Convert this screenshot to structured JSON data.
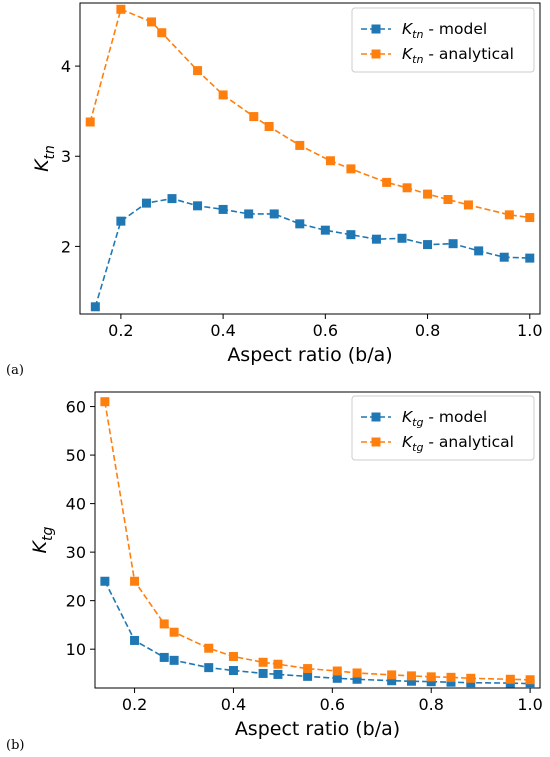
{
  "panel_labels": [
    "(a)",
    "(b)"
  ],
  "colors": {
    "model": "#1f77b4",
    "analytical": "#ff7f0e"
  },
  "chart_data": [
    {
      "type": "line",
      "xlabel": "Aspect ratio (b/a)",
      "ylabel_main": "K",
      "ylabel_sub": "tn",
      "xlim": [
        0.12,
        1.02
      ],
      "ylim": [
        1.25,
        4.7
      ],
      "xticks": [
        0.2,
        0.4,
        0.6,
        0.8,
        1.0
      ],
      "xtick_labels": [
        "0.2",
        "0.4",
        "0.6",
        "0.8",
        "1.0"
      ],
      "yticks": [
        2,
        3,
        4
      ],
      "ytick_labels": [
        "2",
        "3",
        "4"
      ],
      "legend_position": "top-right",
      "series": [
        {
          "name": "model",
          "legend_main": "K",
          "legend_sub": "tn",
          "legend_text": " - model",
          "color": "#1f77b4",
          "x": [
            0.15,
            0.2,
            0.25,
            0.3,
            0.35,
            0.4,
            0.45,
            0.5,
            0.55,
            0.6,
            0.65,
            0.7,
            0.75,
            0.8,
            0.85,
            0.9,
            0.95,
            1.0
          ],
          "y": [
            1.33,
            2.28,
            2.48,
            2.53,
            2.45,
            2.41,
            2.36,
            2.36,
            2.25,
            2.18,
            2.13,
            2.08,
            2.09,
            2.02,
            2.03,
            1.95,
            1.88,
            1.87
          ]
        },
        {
          "name": "analytical",
          "legend_main": "K",
          "legend_sub": "tn",
          "legend_text": " - analytical",
          "color": "#ff7f0e",
          "x": [
            0.14,
            0.2,
            0.26,
            0.28,
            0.35,
            0.4,
            0.46,
            0.49,
            0.55,
            0.61,
            0.65,
            0.72,
            0.76,
            0.8,
            0.84,
            0.88,
            0.96,
            1.0
          ],
          "y": [
            3.38,
            4.63,
            4.49,
            4.37,
            3.95,
            3.68,
            3.44,
            3.33,
            3.12,
            2.95,
            2.86,
            2.71,
            2.65,
            2.58,
            2.52,
            2.46,
            2.35,
            2.32
          ]
        }
      ]
    },
    {
      "type": "line",
      "xlabel": "Aspect ratio (b/a)",
      "ylabel_main": "K",
      "ylabel_sub": "tg",
      "xlim": [
        0.12,
        1.02
      ],
      "ylim": [
        2,
        63
      ],
      "xticks": [
        0.2,
        0.4,
        0.6,
        0.8,
        1.0
      ],
      "xtick_labels": [
        "0.2",
        "0.4",
        "0.6",
        "0.8",
        "1.0"
      ],
      "yticks": [
        10,
        20,
        30,
        40,
        50,
        60
      ],
      "ytick_labels": [
        "10",
        "20",
        "30",
        "40",
        "50",
        "60"
      ],
      "legend_position": "top-right",
      "series": [
        {
          "name": "model",
          "legend_main": "K",
          "legend_sub": "tg",
          "legend_text": " - model",
          "color": "#1f77b4",
          "x": [
            0.14,
            0.2,
            0.26,
            0.28,
            0.35,
            0.4,
            0.46,
            0.49,
            0.55,
            0.61,
            0.65,
            0.72,
            0.76,
            0.8,
            0.84,
            0.88,
            0.96,
            1.0
          ],
          "y": [
            24,
            11.8,
            8.3,
            7.7,
            6.2,
            5.6,
            5.0,
            4.8,
            4.4,
            4.0,
            3.8,
            3.5,
            3.4,
            3.3,
            3.2,
            3.1,
            3.0,
            2.9
          ]
        },
        {
          "name": "analytical",
          "legend_main": "K",
          "legend_sub": "tg",
          "legend_text": " - analytical",
          "color": "#ff7f0e",
          "x": [
            0.14,
            0.2,
            0.26,
            0.28,
            0.35,
            0.4,
            0.46,
            0.49,
            0.55,
            0.61,
            0.65,
            0.72,
            0.76,
            0.8,
            0.84,
            0.88,
            0.96,
            1.0
          ],
          "y": [
            61,
            24,
            15.2,
            13.5,
            10.2,
            8.5,
            7.3,
            6.9,
            6.0,
            5.5,
            5.1,
            4.7,
            4.5,
            4.3,
            4.2,
            4.0,
            3.8,
            3.7
          ]
        }
      ]
    }
  ]
}
